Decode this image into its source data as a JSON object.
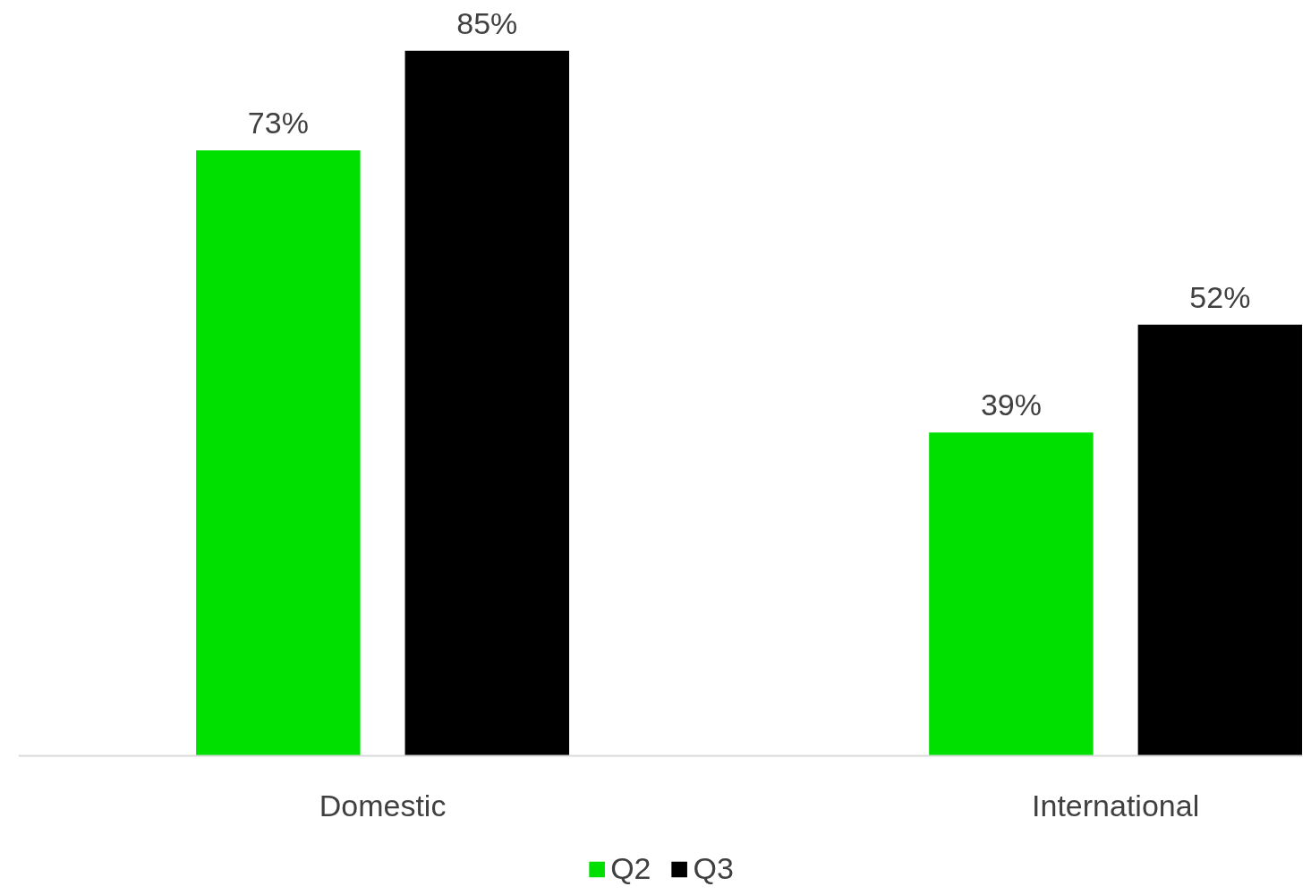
{
  "chart_data": {
    "type": "bar",
    "categories": [
      "Domestic",
      "International"
    ],
    "series": [
      {
        "name": "Q2",
        "color": "#00e000",
        "values": [
          73,
          39
        ],
        "value_labels": [
          "73%",
          "39%"
        ]
      },
      {
        "name": "Q3",
        "color": "#000000",
        "values": [
          85,
          52
        ],
        "value_labels": [
          "85%",
          "52%"
        ]
      }
    ],
    "grid": false,
    "legend": "bottom"
  }
}
